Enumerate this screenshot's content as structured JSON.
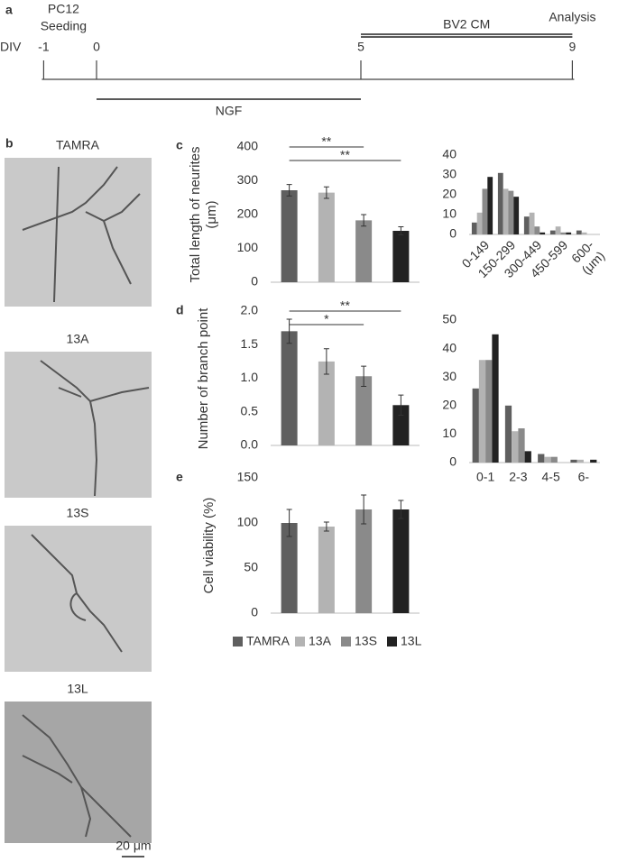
{
  "timeline": {
    "panel": "a",
    "axis_label": "DIV",
    "ticks": [
      -1,
      0,
      5,
      9
    ],
    "seeding": {
      "day": -1,
      "lines": [
        "PC12",
        "Seeding"
      ]
    },
    "analysis": {
      "day": 9,
      "label": "Analysis"
    },
    "periods": [
      {
        "label": "BV2 CM",
        "from": 5,
        "to": 9
      },
      {
        "label": "NGF",
        "from": 0,
        "to": 5
      }
    ]
  },
  "micrographs": {
    "panel": "b",
    "images": [
      {
        "label": "TAMRA"
      },
      {
        "label": "13A"
      },
      {
        "label": "13S"
      },
      {
        "label": "13L"
      }
    ],
    "scale_bar": "20 μm"
  },
  "chart_data": [
    {
      "type": "bar",
      "panel": "c",
      "ylabel": "Total length of neurites (μm)",
      "categories": [
        null,
        null,
        null,
        null
      ],
      "values": [
        272,
        265,
        183,
        152
      ],
      "errors": [
        17,
        17,
        17,
        12
      ],
      "colors": [
        "#5f5f5f",
        "#b3b3b3",
        "#8a8a8a",
        "#222222"
      ],
      "ylim": [
        0,
        400
      ],
      "yticks": [
        0,
        100,
        200,
        300,
        400
      ],
      "annotations": [
        {
          "text": "**",
          "from": 0,
          "to": 2
        },
        {
          "text": "**",
          "from": 0,
          "to": 3
        }
      ]
    },
    {
      "type": "grouped-bar",
      "categories": [
        "0-149",
        "150-299",
        "300-449",
        "450-599",
        "600-"
      ],
      "x_unit": "(μm)",
      "series": [
        {
          "color": "#5f5f5f",
          "values": [
            6,
            31,
            9,
            2,
            2
          ]
        },
        {
          "color": "#b3b3b3",
          "values": [
            11,
            23,
            11,
            4,
            1
          ]
        },
        {
          "color": "#8a8a8a",
          "values": [
            23,
            22,
            4,
            1,
            0
          ]
        },
        {
          "color": "#222222",
          "values": [
            29,
            19,
            1,
            1,
            0
          ]
        }
      ],
      "ylim": [
        0,
        40
      ],
      "yticks": [
        0,
        10,
        20,
        30,
        40
      ]
    },
    {
      "type": "bar",
      "panel": "d",
      "ylabel": "Number of branch point",
      "categories": [
        null,
        null,
        null,
        null
      ],
      "values": [
        1.7,
        1.25,
        1.03,
        0.6
      ],
      "errors": [
        0.18,
        0.19,
        0.15,
        0.15
      ],
      "colors": [
        "#5f5f5f",
        "#b3b3b3",
        "#8a8a8a",
        "#222222"
      ],
      "ylim": [
        0,
        2
      ],
      "yticks": [
        {
          "value": 0,
          "label": "0.0"
        },
        0.5,
        {
          "value": 1,
          "label": "1.0"
        },
        1.5,
        {
          "value": 2,
          "label": "2.0"
        }
      ],
      "annotations": [
        {
          "text": "**",
          "from": 0,
          "to": 3
        },
        {
          "text": "*",
          "from": 0,
          "to": 2
        }
      ]
    },
    {
      "type": "grouped-bar",
      "categories": [
        "0-1",
        "2-3",
        "4-5",
        "6-"
      ],
      "series": [
        {
          "color": "#5f5f5f",
          "values": [
            26,
            20,
            3,
            1
          ]
        },
        {
          "color": "#b3b3b3",
          "values": [
            36,
            11,
            2,
            1
          ]
        },
        {
          "color": "#8a8a8a",
          "values": [
            36,
            12,
            2,
            0
          ]
        },
        {
          "color": "#222222",
          "values": [
            45,
            4,
            0,
            1
          ]
        }
      ],
      "ylim": [
        0,
        50
      ],
      "yticks": [
        0,
        10,
        20,
        30,
        40,
        50
      ]
    },
    {
      "type": "bar",
      "panel": "e",
      "ylabel": "Cell viability (%)",
      "categories": [
        null,
        null,
        null,
        null
      ],
      "values": [
        100,
        96,
        115,
        115
      ],
      "errors": [
        15,
        5,
        16,
        10
      ],
      "colors": [
        "#5f5f5f",
        "#b3b3b3",
        "#8a8a8a",
        "#222222"
      ],
      "ylim": [
        0,
        150
      ],
      "yticks": [
        0,
        50,
        100,
        150
      ],
      "legend": [
        "TAMRA",
        "13A",
        "13S",
        "13L"
      ]
    }
  ]
}
